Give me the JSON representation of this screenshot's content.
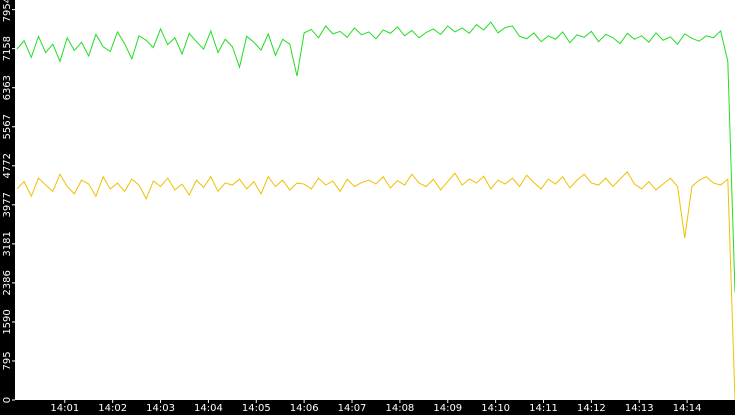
{
  "chart_data": {
    "type": "line",
    "xlim": [
      -0.04,
      15
    ],
    "xticks": [
      {
        "value": 1,
        "label": "14:01"
      },
      {
        "value": 2,
        "label": "14:02"
      },
      {
        "value": 3,
        "label": "14:03"
      },
      {
        "value": 4,
        "label": "14:04"
      },
      {
        "value": 5,
        "label": "14:05"
      },
      {
        "value": 6,
        "label": "14:06"
      },
      {
        "value": 7,
        "label": "14:07"
      },
      {
        "value": 8,
        "label": "14:08"
      },
      {
        "value": 9,
        "label": "14:09"
      },
      {
        "value": 10,
        "label": "14:10"
      },
      {
        "value": 11,
        "label": "14:11"
      },
      {
        "value": 12,
        "label": "14:12"
      },
      {
        "value": 13,
        "label": "14:13"
      },
      {
        "value": 14,
        "label": "14:14"
      }
    ],
    "ylim": [
      0,
      8150
    ],
    "yticks": [
      0,
      795,
      1590,
      2386,
      3181,
      3977,
      4772,
      5567,
      6363,
      7158,
      7954
    ],
    "x": [
      0,
      0.15,
      0.3,
      0.45,
      0.6,
      0.75,
      0.9,
      1.05,
      1.2,
      1.35,
      1.5,
      1.65,
      1.8,
      1.95,
      2.1,
      2.25,
      2.4,
      2.55,
      2.7,
      2.85,
      3,
      3.15,
      3.3,
      3.45,
      3.6,
      3.75,
      3.9,
      4.05,
      4.2,
      4.35,
      4.5,
      4.65,
      4.8,
      4.95,
      5.1,
      5.25,
      5.4,
      5.55,
      5.7,
      5.85,
      6,
      6.15,
      6.3,
      6.45,
      6.6,
      6.75,
      6.9,
      7.05,
      7.2,
      7.35,
      7.5,
      7.65,
      7.8,
      7.95,
      8.1,
      8.25,
      8.4,
      8.55,
      8.7,
      8.85,
      9,
      9.15,
      9.3,
      9.45,
      9.6,
      9.75,
      9.9,
      10.05,
      10.2,
      10.35,
      10.5,
      10.65,
      10.8,
      10.95,
      11.1,
      11.25,
      11.4,
      11.55,
      11.7,
      11.85,
      12,
      12.15,
      12.3,
      12.45,
      12.6,
      12.75,
      12.9,
      13.05,
      13.2,
      13.35,
      13.5,
      13.65,
      13.8,
      13.95,
      14.1,
      14.25,
      14.4,
      14.55,
      14.7,
      14.85,
      15
    ],
    "series": [
      {
        "color": "#22dd22",
        "values": [
          7150,
          7320,
          6980,
          7410,
          7080,
          7250,
          6900,
          7380,
          7120,
          7290,
          7010,
          7450,
          7200,
          7100,
          7500,
          7260,
          6950,
          7420,
          7330,
          7180,
          7560,
          7240,
          7380,
          7050,
          7470,
          7300,
          7150,
          7520,
          7080,
          7350,
          7200,
          6780,
          7410,
          7290,
          7130,
          7460,
          7020,
          7350,
          7250,
          6600,
          7480,
          7550,
          7380,
          7620,
          7460,
          7510,
          7390,
          7580,
          7440,
          7500,
          7360,
          7540,
          7470,
          7600,
          7420,
          7530,
          7380,
          7490,
          7560,
          7450,
          7620,
          7500,
          7580,
          7470,
          7650,
          7540,
          7700,
          7480,
          7590,
          7620,
          7410,
          7360,
          7480,
          7300,
          7420,
          7350,
          7500,
          7280,
          7440,
          7390,
          7510,
          7300,
          7450,
          7380,
          7260,
          7470,
          7350,
          7420,
          7290,
          7480,
          7330,
          7400,
          7250,
          7460,
          7370,
          7310,
          7420,
          7380,
          7520,
          6900,
          2190
        ]
      },
      {
        "color": "#f0c000",
        "values": [
          4300,
          4450,
          4150,
          4520,
          4380,
          4250,
          4600,
          4350,
          4200,
          4480,
          4400,
          4150,
          4550,
          4300,
          4420,
          4250,
          4500,
          4380,
          4100,
          4460,
          4350,
          4520,
          4280,
          4400,
          4180,
          4480,
          4330,
          4550,
          4250,
          4420,
          4380,
          4500,
          4300,
          4450,
          4200,
          4550,
          4350,
          4480,
          4280,
          4420,
          4400,
          4300,
          4520,
          4380,
          4460,
          4250,
          4500,
          4350,
          4430,
          4480,
          4400,
          4550,
          4320,
          4470,
          4380,
          4600,
          4420,
          4350,
          4500,
          4280,
          4450,
          4620,
          4380,
          4500,
          4420,
          4560,
          4300,
          4480,
          4400,
          4520,
          4350,
          4580,
          4430,
          4300,
          4500,
          4400,
          4550,
          4320,
          4480,
          4600,
          4420,
          4380,
          4520,
          4350,
          4500,
          4650,
          4400,
          4300,
          4450,
          4280,
          4400,
          4520,
          4350,
          3300,
          4350,
          4480,
          4550,
          4420,
          4380,
          4500,
          0
        ]
      }
    ]
  }
}
